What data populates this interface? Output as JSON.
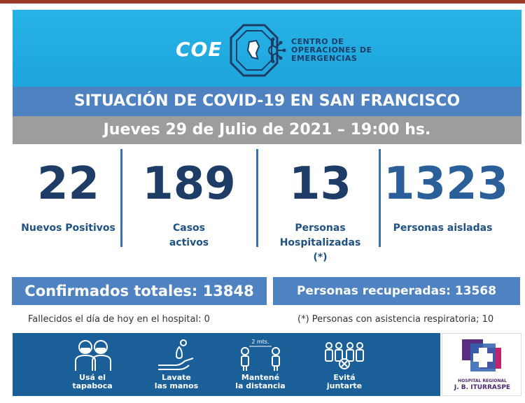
{
  "header": {
    "logo_text": "COE",
    "org_name_lines": [
      "CENTRO DE",
      "OPERACIONES DE",
      "EMERGENCIAS"
    ]
  },
  "title": "SITUACIÓN DE COVID-19 EN SAN FRANCISCO",
  "date": "Jueves 29 de Julio de 2021 – 19:00 hs.",
  "stats": [
    {
      "value": "22",
      "label_lines": [
        "Nuevos Positivos"
      ]
    },
    {
      "value": "189",
      "label_lines": [
        "Casos",
        "activos"
      ]
    },
    {
      "value": "13",
      "label_lines": [
        "Personas",
        "Hospitalizadas",
        "(*)"
      ]
    },
    {
      "value": "1323",
      "label_lines": [
        "Personas aisladas"
      ]
    }
  ],
  "confirmed": "Confirmados totales: 13848",
  "recovered": "Personas recuperadas: 13568",
  "notes": {
    "deaths": "Fallecidos el día de hoy en el hospital: 0",
    "respiratory": "(*) Personas con asistencia respiratoria; 10"
  },
  "tips": [
    {
      "icon": "mask-icon",
      "label_lines": [
        "Usá el",
        "tapaboca"
      ]
    },
    {
      "icon": "handwash-icon",
      "label_lines": [
        "Lavate",
        "las manos"
      ]
    },
    {
      "icon": "distance-icon",
      "label_lines": [
        "Mantené",
        "la distancia"
      ],
      "caption": "2 mts."
    },
    {
      "icon": "crowd-icon",
      "label_lines": [
        "Evitá",
        "juntarte"
      ]
    }
  ],
  "hospital": {
    "name_lines": [
      "HOSPITAL REGIONAL",
      "J. B. ITURRASPE"
    ]
  },
  "colors": {
    "header_blue": "#27b3e6",
    "title_blue": "#4f82c1",
    "date_gray": "#9d9d9d",
    "number_navy": "#1d3c66",
    "strip_blue": "#1b5f98"
  }
}
